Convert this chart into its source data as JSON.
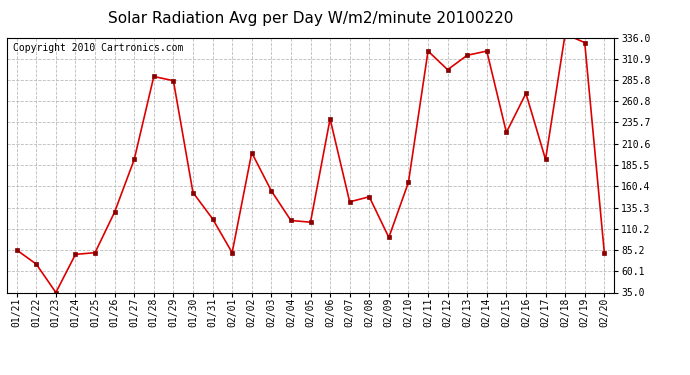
{
  "title": "Solar Radiation Avg per Day W/m2/minute 20100220",
  "copyright": "Copyright 2010 Cartronics.com",
  "x_labels": [
    "01/21",
    "01/22",
    "01/23",
    "01/24",
    "01/25",
    "01/26",
    "01/27",
    "01/28",
    "01/29",
    "01/30",
    "01/31",
    "02/01",
    "02/02",
    "02/03",
    "02/04",
    "02/05",
    "02/06",
    "02/07",
    "02/08",
    "02/09",
    "02/10",
    "02/11",
    "02/12",
    "02/13",
    "02/14",
    "02/15",
    "02/16",
    "02/17",
    "02/18",
    "02/19",
    "02/20"
  ],
  "y_values": [
    85.2,
    68.5,
    35.0,
    80.0,
    82.0,
    130.0,
    192.0,
    290.0,
    285.0,
    153.0,
    122.0,
    82.0,
    200.0,
    155.0,
    120.0,
    118.0,
    240.0,
    142.0,
    148.0,
    100.0,
    165.0,
    320.0,
    298.0,
    315.0,
    320.0,
    224.0,
    270.0,
    192.0,
    340.0,
    330.0,
    82.0
  ],
  "line_color": "#dd0000",
  "marker_color": "#880000",
  "bg_color": "#ffffff",
  "grid_color": "#bbbbbb",
  "y_ticks": [
    35.0,
    60.1,
    85.2,
    110.2,
    135.3,
    160.4,
    185.5,
    210.6,
    235.7,
    260.8,
    285.8,
    310.9,
    336.0
  ],
  "ylim": [
    35.0,
    336.0
  ],
  "title_fontsize": 11,
  "copyright_fontsize": 7,
  "tick_fontsize": 7,
  "figwidth": 6.9,
  "figheight": 3.75,
  "dpi": 100
}
